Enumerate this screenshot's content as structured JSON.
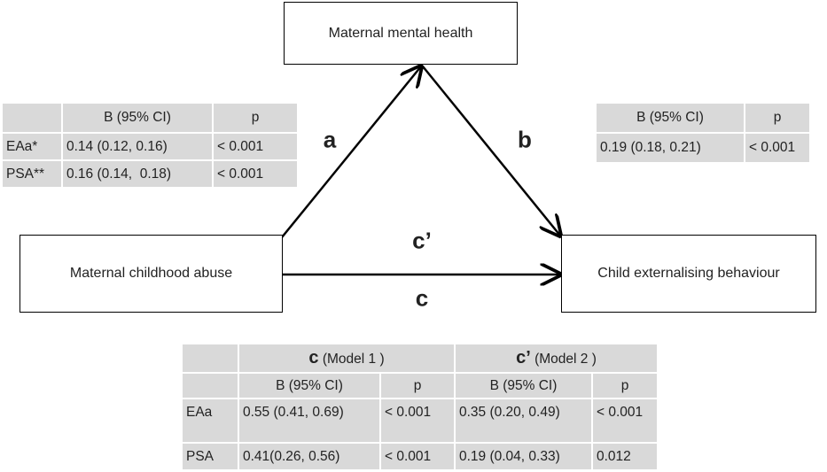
{
  "nodes": [
    {
      "label": "Maternal mental health"
    },
    {
      "label": "Maternal childhood abuse"
    },
    {
      "label": "Child externalising behaviour"
    }
  ],
  "paths": [
    {
      "label": "a"
    },
    {
      "label": "b"
    },
    {
      "label": "c’"
    },
    {
      "label": "c"
    }
  ],
  "table_a": {
    "header": [
      "B (95% CI)",
      "p"
    ],
    "rows": [
      [
        "EAa*",
        "0.14 (0.12, 0.16)",
        "< 0.001"
      ],
      [
        "PSA**",
        "0.16 (0.14,  0.18)",
        "< 0.001"
      ]
    ]
  },
  "table_b": {
    "header": [
      "B (95% CI)",
      "p"
    ],
    "rows": [
      [
        "0.19 (0.18, 0.21)",
        "< 0.001"
      ]
    ]
  },
  "table_c": {
    "groups": [
      {
        "symbol": "c",
        "label": "(Model 1 )"
      },
      {
        "symbol": "c’",
        "label": "(Model 2 )"
      }
    ],
    "header": [
      "B (95% CI)",
      "p",
      "B (95% CI)",
      "p"
    ],
    "rows": [
      [
        "EAa",
        "0.55 (0.41, 0.69)",
        "< 0.001",
        "0.35 (0.20, 0.49)",
        "< 0.001"
      ],
      [
        "PSA",
        "0.41(0.26, 0.56)",
        "< 0.001",
        "0.19 (0.04, 0.33)",
        "0.012"
      ]
    ]
  }
}
